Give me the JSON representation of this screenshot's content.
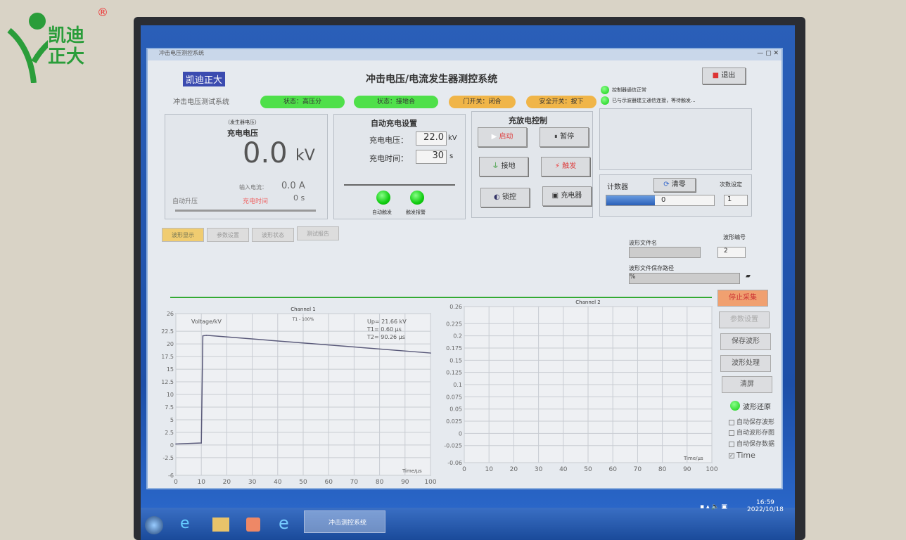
{
  "brand": {
    "logo_text": "凯迪正大",
    "registered": "®"
  },
  "app": {
    "window_title": "冲击电压测控系统",
    "logo_label": "凯迪正大",
    "title": "冲击电压/电流发生器测控系统",
    "subtitle": "冲击电压测试系统",
    "exit_label": "退出",
    "status_pills": [
      {
        "label": "状态：高压分",
        "color": "#4fe04a"
      },
      {
        "label": "状态：接地合",
        "color": "#4fe04a"
      },
      {
        "label": "门开关：闭合",
        "color": "#f0b548"
      },
      {
        "label": "安全开关：按下",
        "color": "#f0b548"
      }
    ],
    "messages": [
      "控制器通信正常",
      "已与示波器建立通信连接，等待触发..."
    ],
    "voltage_panel": {
      "caption": "（发生器电压）",
      "label": "充电电压",
      "value": "0.0",
      "unit": "kV",
      "current_label": "输入电流：",
      "current_value": "0.0",
      "current_unit": "A",
      "auto_label": "自动升压",
      "timer_label": "充电时间",
      "timer_value": "0",
      "timer_unit": "s"
    },
    "auto_charge": {
      "title": "自动充电设置",
      "voltage_label": "充电电压：",
      "voltage_value": "22.0",
      "voltage_unit": "kV",
      "time_label": "充电时间：",
      "time_value": "30",
      "time_unit": "s",
      "leds": [
        "自动触发",
        "触发报警"
      ]
    },
    "control": {
      "title": "充放电控制",
      "buttons": [
        "启动",
        "暂停",
        "接地",
        "触发",
        "锁控",
        "充电器"
      ]
    },
    "counter": {
      "label": "计数器",
      "clear_label": "清零",
      "setting_label": "次数设定",
      "progress": 0.45,
      "value": "0",
      "setting_value": "1"
    },
    "tabs": [
      "波形显示",
      "参数设置",
      "波形状态",
      "测试报告"
    ],
    "file": {
      "name_label": "波形文件名",
      "name_value": "",
      "number_label": "波形编号",
      "number_value": "2",
      "path_label": "波形文件保存路径",
      "path_value": "%"
    },
    "side_buttons": [
      "停止采集",
      "参数设置",
      "保存波形",
      "波形处理",
      "清屏"
    ],
    "restore_label": "波形还原",
    "checkboxes": [
      {
        "label": "自动保存波形",
        "checked": false
      },
      {
        "label": "自动波形存图",
        "checked": false
      },
      {
        "label": "自动保存数据",
        "checked": false
      },
      {
        "label": "Time",
        "checked": true
      }
    ]
  },
  "chart_data": [
    {
      "type": "line",
      "title": "Channel 1",
      "subtitle": "T1 - 100%",
      "ylabel": "Voltage/kV",
      "xlabel": "Time/μs",
      "xlim": [
        0,
        100
      ],
      "ylim": [
        -6,
        26
      ],
      "xticks": [
        0,
        10,
        20,
        30,
        40,
        50,
        60,
        70,
        80,
        90,
        100
      ],
      "yticks": [
        26,
        22.5,
        20,
        17.5,
        15,
        12.5,
        10,
        7.5,
        5,
        2.5,
        0,
        -2.5,
        -6
      ],
      "annotations": [
        "Up= 21.66 kV",
        "T1= 0.60 μs",
        "T2= 90.26 μs"
      ],
      "grid": true,
      "x": [
        0,
        10,
        10.6,
        12,
        100
      ],
      "y": [
        0.2,
        0.4,
        21.6,
        21.7,
        18.2
      ]
    },
    {
      "type": "line",
      "title": "Channel 2",
      "xlabel": "Time/μs",
      "xlim": [
        0,
        100
      ],
      "ylim": [
        -0.06,
        0.26
      ],
      "xticks": [
        0,
        10,
        20,
        30,
        40,
        50,
        60,
        70,
        80,
        90,
        100
      ],
      "yticks": [
        0.26,
        0.225,
        0.2,
        0.175,
        0.15,
        0.125,
        0.1,
        0.075,
        0.05,
        0.025,
        0,
        -0.025,
        -0.06
      ],
      "grid": true,
      "x": [],
      "y": []
    }
  ],
  "taskbar": {
    "task_label": "冲击测控系统",
    "time": "16:59",
    "date": "2022/10/18"
  }
}
